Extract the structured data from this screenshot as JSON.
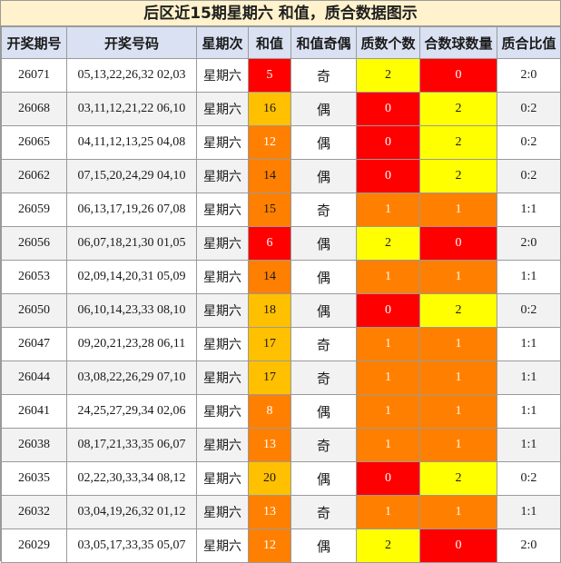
{
  "title": "后区近15期星期六 和值，质合数据图示",
  "headers": [
    "开奖期号",
    "开奖号码",
    "星期次",
    "和值",
    "和值奇偶",
    "质数个数",
    "合数球数量",
    "质合比值"
  ],
  "colors": {
    "red": "#ff0000",
    "orange": "#ff8000",
    "yellow": "#ffff00",
    "gold": "#ffc000",
    "white_text": "#ffffff",
    "dark_text": "#1a1a1a"
  },
  "rows": [
    {
      "issue": "26071",
      "numbers": "05,13,22,26,32 02,03",
      "weekday": "星期六",
      "sum": "5",
      "odd_even": "奇",
      "primes": "2",
      "composites": "0",
      "ratio": "2:0"
    },
    {
      "issue": "26068",
      "numbers": "03,11,12,21,22 06,10",
      "weekday": "星期六",
      "sum": "16",
      "odd_even": "偶",
      "primes": "0",
      "composites": "2",
      "ratio": "0:2"
    },
    {
      "issue": "26065",
      "numbers": "04,11,12,13,25 04,08",
      "weekday": "星期六",
      "sum": "12",
      "odd_even": "偶",
      "primes": "0",
      "composites": "2",
      "ratio": "0:2"
    },
    {
      "issue": "26062",
      "numbers": "07,15,20,24,29 04,10",
      "weekday": "星期六",
      "sum": "14",
      "odd_even": "偶",
      "primes": "0",
      "composites": "2",
      "ratio": "0:2"
    },
    {
      "issue": "26059",
      "numbers": "06,13,17,19,26 07,08",
      "weekday": "星期六",
      "sum": "15",
      "odd_even": "奇",
      "primes": "1",
      "composites": "1",
      "ratio": "1:1"
    },
    {
      "issue": "26056",
      "numbers": "06,07,18,21,30 01,05",
      "weekday": "星期六",
      "sum": "6",
      "odd_even": "偶",
      "primes": "2",
      "composites": "0",
      "ratio": "2:0"
    },
    {
      "issue": "26053",
      "numbers": "02,09,14,20,31 05,09",
      "weekday": "星期六",
      "sum": "14",
      "odd_even": "偶",
      "primes": "1",
      "composites": "1",
      "ratio": "1:1"
    },
    {
      "issue": "26050",
      "numbers": "06,10,14,23,33 08,10",
      "weekday": "星期六",
      "sum": "18",
      "odd_even": "偶",
      "primes": "0",
      "composites": "2",
      "ratio": "0:2"
    },
    {
      "issue": "26047",
      "numbers": "09,20,21,23,28 06,11",
      "weekday": "星期六",
      "sum": "17",
      "odd_even": "奇",
      "primes": "1",
      "composites": "1",
      "ratio": "1:1"
    },
    {
      "issue": "26044",
      "numbers": "03,08,22,26,29 07,10",
      "weekday": "星期六",
      "sum": "17",
      "odd_even": "奇",
      "primes": "1",
      "composites": "1",
      "ratio": "1:1"
    },
    {
      "issue": "26041",
      "numbers": "24,25,27,29,34 02,06",
      "weekday": "星期六",
      "sum": "8",
      "odd_even": "偶",
      "primes": "1",
      "composites": "1",
      "ratio": "1:1"
    },
    {
      "issue": "26038",
      "numbers": "08,17,21,33,35 06,07",
      "weekday": "星期六",
      "sum": "13",
      "odd_even": "奇",
      "primes": "1",
      "composites": "1",
      "ratio": "1:1"
    },
    {
      "issue": "26035",
      "numbers": "02,22,30,33,34 08,12",
      "weekday": "星期六",
      "sum": "20",
      "odd_even": "偶",
      "primes": "0",
      "composites": "2",
      "ratio": "0:2"
    },
    {
      "issue": "26032",
      "numbers": "03,04,19,26,32 01,12",
      "weekday": "星期六",
      "sum": "13",
      "odd_even": "奇",
      "primes": "1",
      "composites": "1",
      "ratio": "1:1"
    },
    {
      "issue": "26029",
      "numbers": "03,05,17,33,35 05,07",
      "weekday": "星期六",
      "sum": "12",
      "odd_even": "偶",
      "primes": "2",
      "composites": "0",
      "ratio": "2:0"
    }
  ]
}
